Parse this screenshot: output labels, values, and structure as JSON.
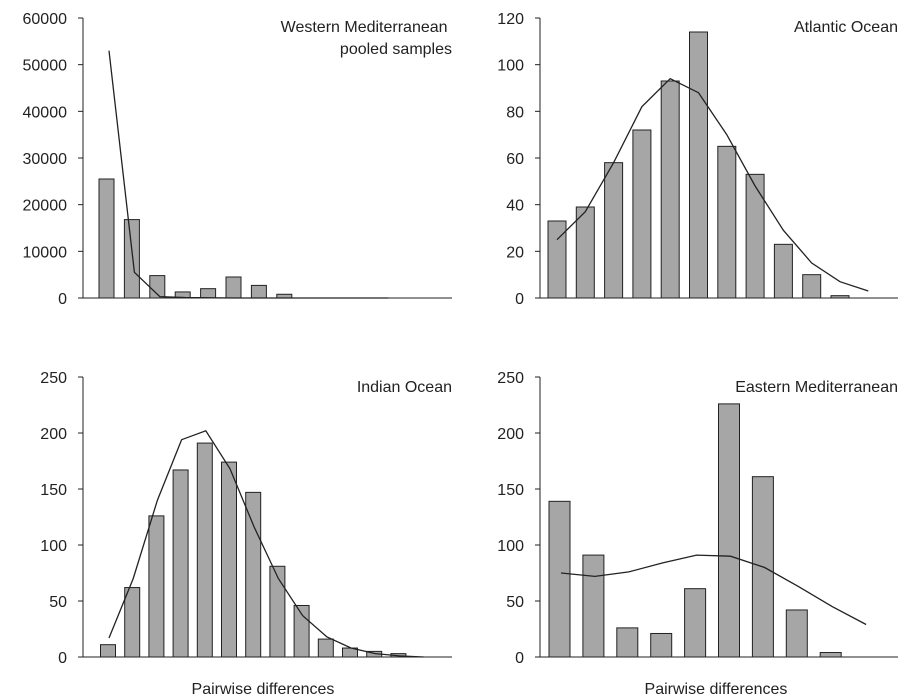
{
  "chart_data": [
    {
      "type": "bar",
      "title": "Western Mediterranean\npooled samples",
      "xlabel": "",
      "ylabel": "",
      "ylim": [
        0,
        60000
      ],
      "yticks": [
        0,
        10000,
        20000,
        30000,
        40000,
        50000,
        60000
      ],
      "bar_color": "#a6a6a6",
      "series": [
        {
          "type": "bar",
          "values": [
            25500,
            16800,
            4800,
            1300,
            2000,
            4500,
            2700,
            800,
            0,
            0,
            0,
            0
          ]
        },
        {
          "type": "line",
          "values": [
            53000,
            5500,
            300,
            100,
            50,
            0,
            0,
            0,
            0,
            0,
            0,
            0
          ]
        }
      ]
    },
    {
      "type": "bar",
      "title": "Atlantic Ocean",
      "xlabel": "",
      "ylabel": "",
      "ylim": [
        0,
        120
      ],
      "yticks": [
        0,
        20,
        40,
        60,
        80,
        100,
        120
      ],
      "bar_color": "#a6a6a6",
      "series": [
        {
          "type": "bar",
          "values": [
            33,
            39,
            58,
            72,
            93,
            114,
            65,
            53,
            23,
            10,
            1
          ]
        },
        {
          "type": "line",
          "values": [
            25,
            37,
            58,
            82,
            94,
            88,
            70,
            48,
            29,
            15,
            7,
            3
          ]
        }
      ]
    },
    {
      "type": "bar",
      "title": "Indian Ocean",
      "xlabel": "Pairwise differences",
      "ylabel": "",
      "ylim": [
        0,
        250
      ],
      "yticks": [
        0,
        50,
        100,
        150,
        200,
        250
      ],
      "bar_color": "#a6a6a6",
      "series": [
        {
          "type": "bar",
          "values": [
            11,
            62,
            126,
            167,
            191,
            174,
            147,
            81,
            46,
            16,
            8,
            5,
            3
          ]
        },
        {
          "type": "line",
          "values": [
            17,
            70,
            140,
            194,
            202,
            168,
            116,
            70,
            37,
            18,
            8,
            3,
            1,
            0
          ]
        }
      ]
    },
    {
      "type": "bar",
      "title": "Eastern Mediterranean",
      "xlabel": "Pairwise differences",
      "ylabel": "",
      "ylim": [
        0,
        250
      ],
      "yticks": [
        0,
        50,
        100,
        150,
        200,
        250
      ],
      "bar_color": "#a6a6a6",
      "series": [
        {
          "type": "bar",
          "values": [
            139,
            91,
            26,
            21,
            61,
            226,
            161,
            42,
            4
          ]
        },
        {
          "type": "line",
          "values": [
            75,
            72,
            76,
            84,
            91,
            90,
            80,
            63,
            45,
            29
          ]
        }
      ]
    }
  ]
}
